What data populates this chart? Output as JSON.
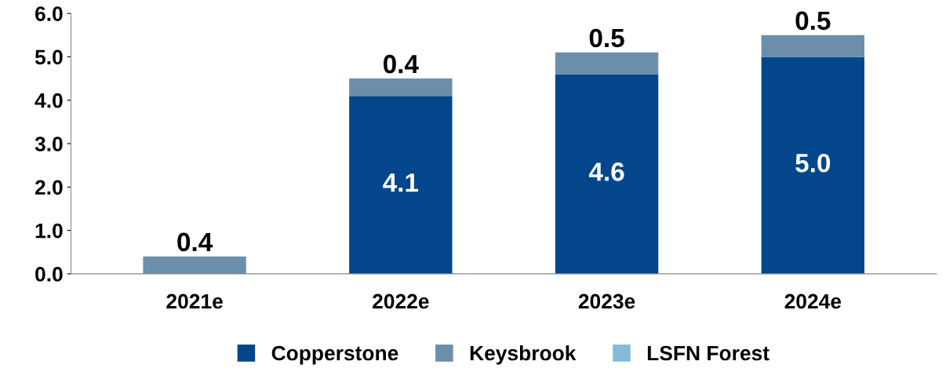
{
  "chart_data": {
    "type": "bar",
    "stacked": true,
    "categories": [
      "2021e",
      "2022e",
      "2023e",
      "2024e"
    ],
    "series": [
      {
        "name": "Copperstone",
        "color": "#03468b",
        "values": [
          0,
          4.1,
          4.6,
          5.0
        ],
        "value_labels": [
          null,
          "4.1",
          "4.6",
          "5.0"
        ]
      },
      {
        "name": "Keysbrook",
        "color": "#6b8fab",
        "values": [
          0.4,
          0.4,
          0.5,
          0.5
        ],
        "value_labels": [
          "0.4",
          "0.4",
          "0.5",
          "0.5"
        ]
      },
      {
        "name": "LSFN Forest",
        "color": "#83bcd9",
        "values": [
          null,
          null,
          null,
          null
        ]
      }
    ],
    "ylim": [
      0,
      6
    ],
    "yticks": [
      {
        "value": 0,
        "label": "0.0"
      },
      {
        "value": 1,
        "label": "1.0"
      },
      {
        "value": 2,
        "label": "2.0"
      },
      {
        "value": 3,
        "label": "3.0"
      },
      {
        "value": 4,
        "label": "4.0"
      },
      {
        "value": 5,
        "label": "5.0"
      },
      {
        "value": 6,
        "label": "6.0"
      }
    ],
    "grid": false,
    "legend": "bottom"
  }
}
